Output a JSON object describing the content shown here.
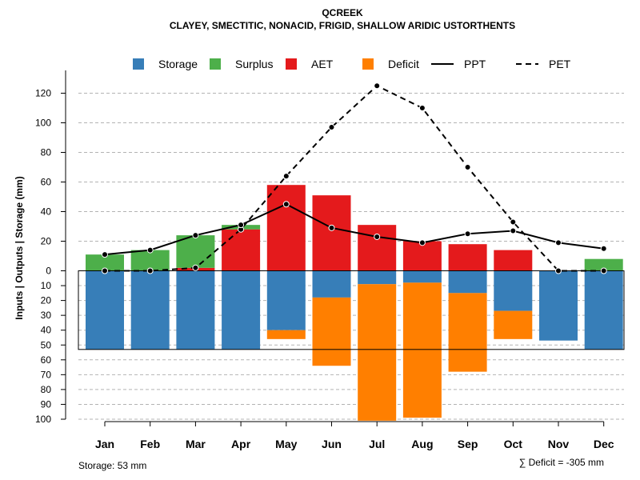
{
  "chart_data": {
    "type": "bar",
    "title": "QCREEK",
    "subtitle": "CLAYEY, SMECTITIC, NONACID, FRIGID, SHALLOW ARIDIC USTORTHENTS",
    "ylabel": "Inputs | Outputs | Storage     (mm)",
    "categories": [
      "Jan",
      "Feb",
      "Mar",
      "Apr",
      "May",
      "Jun",
      "Jul",
      "Aug",
      "Sep",
      "Oct",
      "Nov",
      "Dec"
    ],
    "upper_ylim": [
      0,
      130
    ],
    "upper_ticks": [
      "0",
      "20",
      "40",
      "60",
      "80",
      "100",
      "120"
    ],
    "lower_ylim": [
      0,
      100
    ],
    "lower_ticks": [
      "10",
      "20",
      "30",
      "40",
      "50",
      "60",
      "70",
      "80",
      "90",
      "100"
    ],
    "legend": [
      {
        "label": "Storage",
        "color": "#377eb8",
        "kind": "box"
      },
      {
        "label": "Surplus",
        "color": "#4daf4a",
        "kind": "box"
      },
      {
        "label": "AET",
        "color": "#e41a1c",
        "kind": "box"
      },
      {
        "label": "Deficit",
        "color": "#ff7f00",
        "kind": "box"
      },
      {
        "label": "PPT",
        "color": "#000000",
        "kind": "solid"
      },
      {
        "label": "PET",
        "color": "#000000",
        "kind": "dashed"
      }
    ],
    "series": [
      {
        "name": "AET",
        "color": "#e41a1c",
        "values": [
          0,
          0,
          2,
          28,
          58,
          51,
          31,
          20,
          18,
          14,
          0,
          0
        ]
      },
      {
        "name": "Surplus",
        "color": "#4daf4a",
        "values": [
          11,
          14,
          22,
          3,
          0,
          0,
          0,
          0,
          0,
          0,
          0,
          8
        ]
      },
      {
        "name": "Storage",
        "color": "#377eb8",
        "values": [
          53,
          53,
          53,
          53,
          40,
          18,
          9,
          8,
          15,
          27,
          47,
          53
        ]
      },
      {
        "name": "Deficit",
        "color": "#ff7f00",
        "values": [
          0,
          0,
          0,
          0,
          6,
          46,
          92,
          91,
          53,
          19,
          0,
          0
        ]
      },
      {
        "name": "PPT",
        "values": [
          11,
          14,
          24,
          31,
          45,
          29,
          23,
          19,
          25,
          27,
          19,
          15
        ]
      },
      {
        "name": "PET",
        "values": [
          0,
          0,
          2,
          28,
          64,
          97,
          125,
          110,
          70,
          33,
          0,
          0
        ]
      }
    ],
    "storage_capacity": 53,
    "footer_left": "Storage: 53 mm",
    "footer_right": "∑ Deficit = -305 mm"
  }
}
